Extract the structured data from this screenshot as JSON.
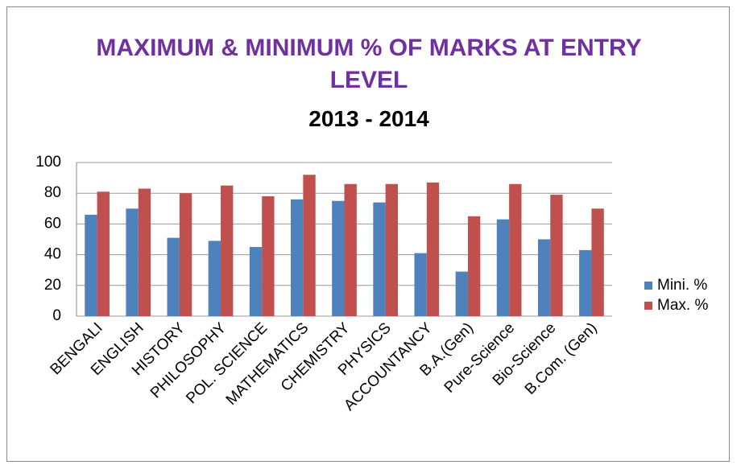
{
  "chart_data": {
    "type": "bar",
    "title": "MAXIMUM & MINIMUM % OF MARKS AT ENTRY LEVEL",
    "subtitle": "2013 - 2014",
    "categories": [
      "BENGALI",
      "ENGLISH",
      "HISTORY",
      "PHILOSOPHY",
      "POL. SCIENCE",
      "MATHEMATICS",
      "CHEMISTRY",
      "PHYSICS",
      "ACCOUNTANCY",
      "B.A.(Gen)",
      "Pure-Science",
      "Bio-Science",
      "B.Com. (Gen)"
    ],
    "series": [
      {
        "name": "Mini. %",
        "color": "#4f81bd",
        "values": [
          66,
          70,
          51,
          49,
          45,
          76,
          75,
          74,
          41,
          29,
          63,
          50,
          43
        ]
      },
      {
        "name": "Max. %",
        "color": "#c0504d",
        "values": [
          81,
          83,
          80,
          85,
          78,
          92,
          86,
          86,
          87,
          65,
          86,
          79,
          70
        ]
      }
    ],
    "ylim": [
      0,
      100
    ],
    "yticks": [
      0,
      20,
      40,
      60,
      80,
      100
    ],
    "grid": true,
    "legend": "right"
  }
}
